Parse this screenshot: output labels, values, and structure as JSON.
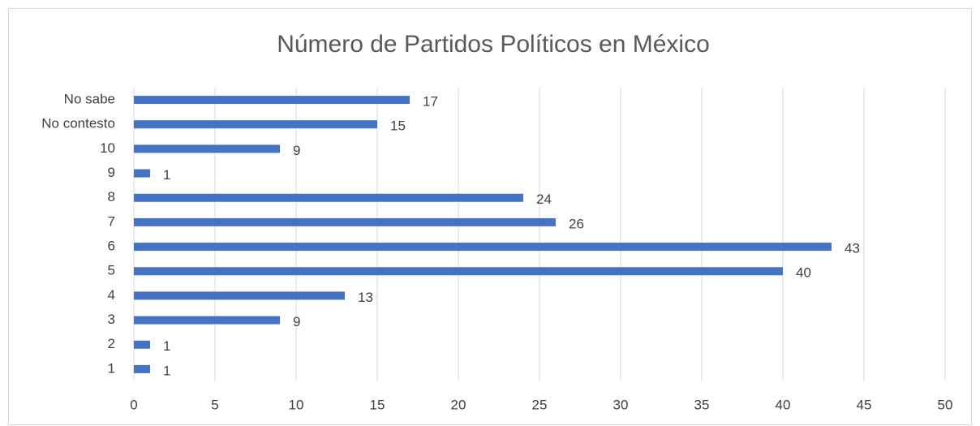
{
  "chart_data": {
    "type": "bar",
    "orientation": "horizontal",
    "title": "Número de Partidos Políticos en México",
    "categories": [
      "1",
      "2",
      "3",
      "4",
      "5",
      "6",
      "7",
      "8",
      "9",
      "10",
      "No contesto",
      "No sabe"
    ],
    "values": [
      1,
      1,
      9,
      13,
      40,
      43,
      26,
      24,
      1,
      9,
      15,
      17
    ],
    "color": "#4472c4",
    "xlim": [
      0,
      50
    ],
    "xticks": [
      0,
      5,
      10,
      15,
      20,
      25,
      30,
      35,
      40,
      45,
      50
    ],
    "grid": true
  }
}
